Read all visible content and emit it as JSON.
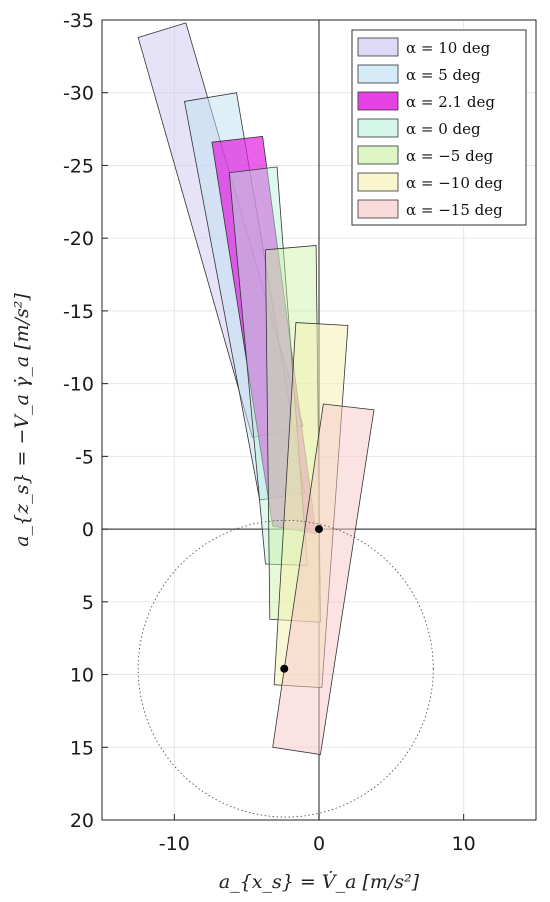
{
  "chart_data": {
    "type": "area",
    "xlabel": "a_{x_s} = V̇_a  [m/s²]",
    "ylabel": "a_{z_s} = −V_a γ̇_a  [m/s²]",
    "xlim": [
      -15,
      15
    ],
    "ylim": [
      -35,
      20
    ],
    "y_reversed": true,
    "grid": true,
    "legend_position": "top-right",
    "x_ticks": [
      "-10",
      "0",
      "10"
    ],
    "x_tick_values": [
      -10,
      0,
      10
    ],
    "y_ticks": [
      "-35",
      "-30",
      "-25",
      "-20",
      "-15",
      "-10",
      "-5",
      "0",
      "5",
      "10",
      "15",
      "20"
    ],
    "y_tick_values": [
      -35,
      -30,
      -25,
      -20,
      -15,
      -10,
      -5,
      0,
      5,
      10,
      15,
      20
    ],
    "series": [
      {
        "name": "α = 10 deg",
        "color": "#c8c0f0",
        "opacity": 0.45,
        "polygon": [
          [
            -12.5,
            -33.8
          ],
          [
            -9.2,
            -34.8
          ],
          [
            -1.1,
            -7.1
          ],
          [
            -4.6,
            -6.3
          ]
        ]
      },
      {
        "name": "α = 5 deg",
        "color": "#bfe0f2",
        "opacity": 0.5,
        "polygon": [
          [
            -9.3,
            -29.4
          ],
          [
            -5.7,
            -30.0
          ],
          [
            -1.0,
            -2.5
          ],
          [
            -4.1,
            -2.0
          ]
        ]
      },
      {
        "name": "α = 2.1 deg",
        "color": "#e020e0",
        "opacity": 0.7,
        "polygon": [
          [
            -7.4,
            -26.6
          ],
          [
            -3.9,
            -27.0
          ],
          [
            -0.2,
            0.3
          ],
          [
            -3.2,
            -0.2
          ]
        ]
      },
      {
        "name": "α = 0 deg",
        "color": "#b8f0d8",
        "opacity": 0.45,
        "polygon": [
          [
            -6.2,
            -24.5
          ],
          [
            -2.9,
            -24.9
          ],
          [
            -0.8,
            2.5
          ],
          [
            -3.7,
            2.4
          ]
        ]
      },
      {
        "name": "α = −5 deg",
        "color": "#c8f0a0",
        "opacity": 0.45,
        "polygon": [
          [
            -3.7,
            -19.2
          ],
          [
            -0.2,
            -19.5
          ],
          [
            0.1,
            6.4
          ],
          [
            -3.4,
            6.2
          ]
        ]
      },
      {
        "name": "α = −10 deg",
        "color": "#f6f0b0",
        "opacity": 0.5,
        "polygon": [
          [
            -1.6,
            -14.2
          ],
          [
            2.0,
            -14.0
          ],
          [
            0.2,
            10.9
          ],
          [
            -3.1,
            10.7
          ]
        ]
      },
      {
        "name": "α = −15 deg",
        "color": "#f8c8c8",
        "opacity": 0.5,
        "polygon": [
          [
            0.3,
            -8.6
          ],
          [
            3.8,
            -8.2
          ],
          [
            0.1,
            15.5
          ],
          [
            -3.2,
            15.0
          ]
        ]
      }
    ],
    "circle": {
      "center": [
        -2.3,
        9.6
      ],
      "radius": 10.2
    },
    "points": [
      [
        0,
        0
      ],
      [
        -2.4,
        9.6
      ]
    ]
  }
}
